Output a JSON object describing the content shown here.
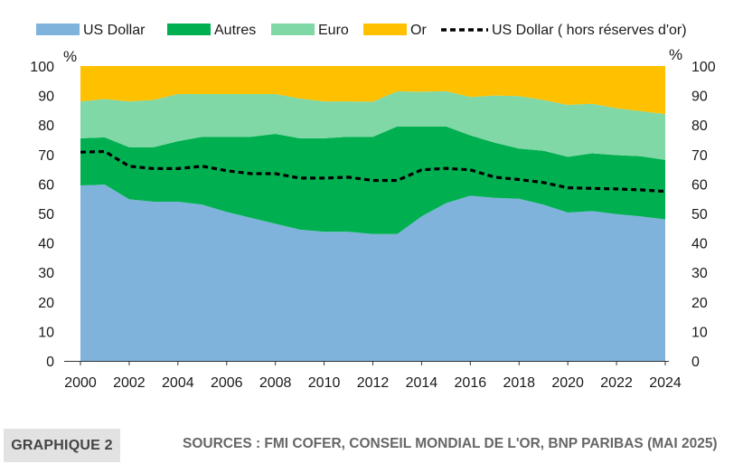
{
  "footer": {
    "tag": "GRAPHIQUE 2",
    "sources": "SOURCES : FMI COFER, CONSEIL MONDIAL DE L'OR, BNP PARIBAS (MAI 2025)"
  },
  "chart_data": {
    "type": "area",
    "stacked": true,
    "unit_left": "%",
    "unit_right": "%",
    "ylim": [
      0,
      100
    ],
    "yticks": [
      0,
      10,
      20,
      30,
      40,
      50,
      60,
      70,
      80,
      90,
      100
    ],
    "xlim": [
      2000,
      2024
    ],
    "xticks": [
      2000,
      2002,
      2004,
      2006,
      2008,
      2010,
      2012,
      2014,
      2016,
      2018,
      2020,
      2022,
      2024
    ],
    "legend_position": "top",
    "grid": false,
    "x": [
      2000,
      2001,
      2002,
      2003,
      2004,
      2005,
      2006,
      2007,
      2008,
      2009,
      2010,
      2011,
      2012,
      2013,
      2014,
      2015,
      2016,
      2017,
      2018,
      2019,
      2020,
      2021,
      2022,
      2023,
      2024
    ],
    "series": [
      {
        "name": "US Dollar",
        "color": "#7fb3dc",
        "values": [
          59.5,
          59.8,
          54.8,
          54.0,
          54.0,
          53.0,
          50.5,
          48.5,
          46.5,
          44.5,
          43.8,
          43.8,
          43.0,
          43.0,
          49.0,
          53.5,
          56.0,
          55.3,
          55.0,
          53.0,
          50.3,
          50.8,
          49.8,
          49.0,
          48.0
        ]
      },
      {
        "name": "Autres",
        "color": "#00b050",
        "values": [
          16.0,
          16.0,
          17.7,
          18.5,
          20.5,
          23.0,
          25.5,
          27.5,
          30.5,
          31.0,
          31.7,
          32.2,
          33.0,
          36.5,
          30.5,
          26.0,
          20.5,
          18.7,
          17.0,
          18.3,
          18.9,
          19.6,
          20.0,
          20.4,
          20.2
        ]
      },
      {
        "name": "Euro",
        "color": "#80d8a6",
        "values": [
          12.5,
          13.0,
          15.5,
          16.0,
          16.0,
          14.5,
          14.5,
          14.5,
          13.5,
          13.5,
          12.5,
          12.0,
          11.9,
          11.9,
          11.8,
          12.0,
          13.0,
          16.0,
          17.8,
          17.2,
          17.6,
          16.8,
          15.9,
          15.3,
          15.5
        ]
      },
      {
        "name": "Or",
        "color": "#ffc000",
        "values": [
          12.0,
          11.2,
          12.0,
          11.5,
          9.5,
          9.5,
          9.5,
          9.5,
          9.5,
          11.0,
          12.0,
          12.0,
          12.1,
          8.6,
          8.7,
          8.5,
          10.5,
          10.0,
          10.2,
          11.5,
          13.2,
          12.8,
          14.3,
          15.3,
          16.3
        ]
      }
    ],
    "line_series": {
      "name": "US Dollar ( hors réserves d'or)",
      "color": "#000000",
      "style": "dashed",
      "values": [
        70.8,
        71.0,
        66.0,
        65.2,
        65.2,
        66.0,
        64.5,
        63.5,
        63.5,
        62.0,
        62.0,
        62.3,
        61.2,
        61.2,
        64.8,
        65.3,
        64.8,
        62.3,
        61.5,
        60.5,
        58.7,
        58.5,
        58.3,
        58.0,
        57.5
      ]
    }
  }
}
